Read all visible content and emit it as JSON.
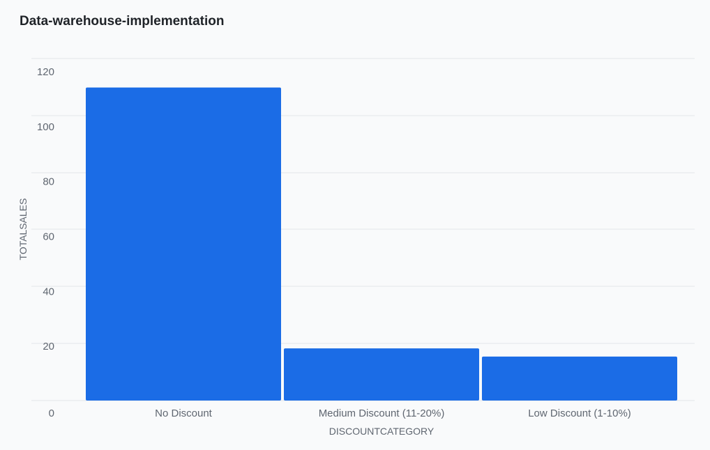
{
  "chart": {
    "title": "Data-warehouse-implementation"
  },
  "colors": {
    "bar": "#1b6ce6",
    "grid": "#e4e6ea",
    "text": "#5f6670",
    "background": "#f9fafb"
  },
  "chart_data": {
    "type": "bar",
    "title": "Data-warehouse-implementation",
    "xlabel": "DISCOUNTCATEGORY",
    "ylabel": "TOTALSALES",
    "categories": [
      "No Discount",
      "Medium Discount (11-20%)",
      "Low Discount (1-10%)"
    ],
    "values": [
      114,
      19,
      16
    ],
    "ylim": [
      0,
      120
    ],
    "yticks": [
      0,
      20,
      40,
      60,
      80,
      100,
      120
    ],
    "grid": true,
    "legend": "none"
  }
}
